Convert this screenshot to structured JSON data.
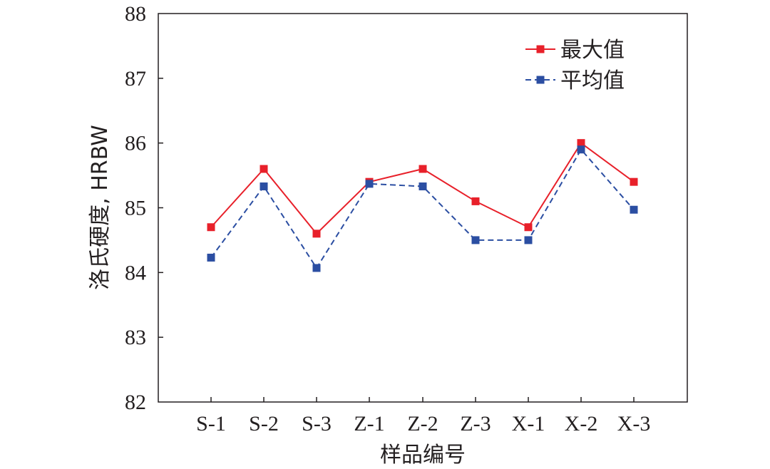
{
  "chart_data": {
    "type": "line",
    "title": "",
    "xlabel": "样品编号",
    "ylabel": "洛氏硬度, HRBW",
    "categories": [
      "S-1",
      "S-2",
      "S-3",
      "Z-1",
      "Z-2",
      "Z-3",
      "X-1",
      "X-2",
      "X-3"
    ],
    "ylim": [
      82,
      88
    ],
    "yticks": [
      "82",
      "83",
      "84",
      "85",
      "86",
      "87",
      "88"
    ],
    "grid": false,
    "legend_position": "top-right",
    "series": [
      {
        "name": "最大值",
        "color": "#e8202a",
        "line_style": "solid",
        "marker": "square",
        "values": [
          84.7,
          85.6,
          84.6,
          85.4,
          85.6,
          85.1,
          84.7,
          86.0,
          85.4
        ]
      },
      {
        "name": "平均值",
        "color": "#2b4ea2",
        "line_style": "dashed",
        "marker": "square",
        "values": [
          84.23,
          85.33,
          84.07,
          85.37,
          85.33,
          84.5,
          84.5,
          85.9,
          84.97
        ]
      }
    ]
  }
}
